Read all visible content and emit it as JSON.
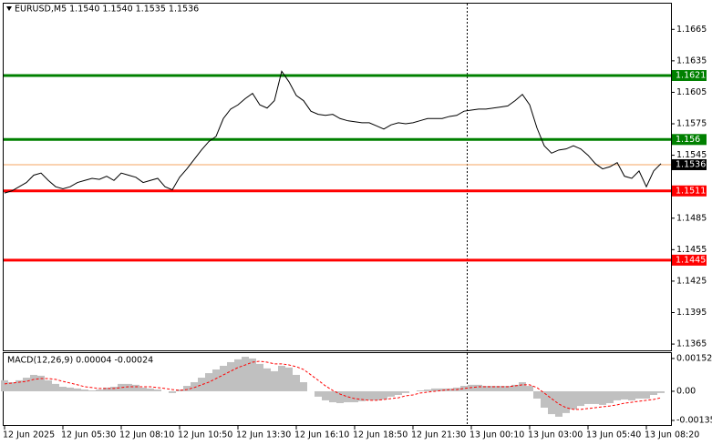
{
  "chart_data": [
    {
      "type": "line",
      "title": "EURUSD,M5  1.1540 1.1540 1.1535 1.1536",
      "categories": [
        "12 Jun 2025",
        null,
        null,
        null,
        null,
        null,
        null,
        null,
        "12 Jun 05:30",
        null,
        null,
        null,
        null,
        null,
        null,
        null,
        "12 Jun 08:10",
        null,
        null,
        null,
        null,
        null,
        null,
        null,
        "12 Jun 10:50",
        null,
        null,
        null,
        null,
        null,
        null,
        null,
        "12 Jun 13:30",
        null,
        null,
        null,
        null,
        null,
        null,
        null,
        "12 Jun 16:10",
        null,
        null,
        null,
        null,
        null,
        null,
        null,
        "12 Jun 18:50",
        null,
        null,
        null,
        null,
        null,
        null,
        null,
        "12 Jun 21:30",
        null,
        null,
        null,
        null,
        null,
        null,
        null,
        "13 Jun 00:10",
        null,
        null,
        null,
        null,
        null,
        null,
        null,
        "13 Jun 03:00",
        null,
        null,
        null,
        null,
        null,
        null,
        null,
        "13 Jun 05:40",
        null,
        null,
        null,
        null,
        null,
        null,
        null,
        "13 Jun 08:20",
        null,
        null
      ],
      "series": [
        {
          "name": "EURUSD",
          "color": "#000000",
          "values": [
            1.1509,
            1.1511,
            1.1515,
            1.1519,
            1.1526,
            1.1528,
            1.1521,
            1.1515,
            1.1513,
            1.1515,
            1.1519,
            1.1521,
            1.1523,
            1.1522,
            1.1525,
            1.1521,
            1.1528,
            1.1526,
            1.1524,
            1.1519,
            1.1521,
            1.1523,
            1.1515,
            1.1512,
            1.1524,
            1.1532,
            1.1541,
            1.155,
            1.1558,
            1.1563,
            1.158,
            1.1589,
            1.1593,
            1.1599,
            1.1604,
            1.1593,
            1.159,
            1.1597,
            1.1625,
            1.1615,
            1.1602,
            1.1597,
            1.1587,
            1.1584,
            1.1583,
            1.1584,
            1.158,
            1.1578,
            1.1577,
            1.1576,
            1.1576,
            1.1573,
            1.157,
            1.1574,
            1.1576,
            1.1575,
            1.1576,
            1.1578,
            1.158,
            1.158,
            1.158,
            1.1582,
            1.1583,
            1.1587,
            1.1588,
            1.1589,
            1.1589,
            1.159,
            1.1591,
            1.1592,
            1.1597,
            1.1603,
            1.1593,
            1.1571,
            1.1554,
            1.1547,
            1.155,
            1.1551,
            1.1554,
            1.1551,
            1.1545,
            1.1537,
            1.1532,
            1.1534,
            1.1538,
            1.1525,
            1.1523,
            1.153,
            1.1515,
            1.153,
            1.1537
          ]
        }
      ],
      "levels": [
        {
          "value": 1.1621,
          "color": "#008000"
        },
        {
          "value": 1.156,
          "color": "#008000"
        },
        {
          "value": 1.1511,
          "color": "#ff0000"
        },
        {
          "value": 1.1445,
          "color": "#ff0000"
        }
      ],
      "last": {
        "value": 1.1536,
        "color": "#f4a460"
      },
      "ylim": [
        1.1359,
        1.1693
      ],
      "yticks": [
        1.1665,
        1.1635,
        1.1605,
        1.1575,
        1.1545,
        1.1485,
        1.1455,
        1.1425,
        1.1395,
        1.1365
      ]
    },
    {
      "type": "bar",
      "title": "MACD(12,26,9) 0.00004 -0.00024",
      "series": [
        {
          "name": "MACD",
          "color": "#c0c0c0",
          "values": [
            0.00051,
            0.00042,
            0.00051,
            0.00063,
            0.00076,
            0.00072,
            0.00051,
            0.00034,
            0.00021,
            0.00017,
            0.00013,
            8e-05,
            4e-05,
            8e-05,
            0.00017,
            0.00021,
            0.00034,
            0.00034,
            0.0003,
            0.00017,
            0.00013,
            8e-05,
            0,
            -8e-05,
            8e-05,
            0.00025,
            0.00042,
            0.00063,
            0.00084,
            0.00101,
            0.00118,
            0.00135,
            0.00148,
            0.0016,
            0.00152,
            0.00127,
            0.00106,
            0.00093,
            0.00118,
            0.0011,
            0.00076,
            0.00042,
            0,
            -0.00025,
            -0.00042,
            -0.00051,
            -0.00055,
            -0.00051,
            -0.00051,
            -0.00046,
            -0.00042,
            -0.00042,
            -0.00038,
            -0.00025,
            -0.00017,
            -8e-05,
            0,
            4e-05,
            8e-05,
            0.00013,
            0.00013,
            0.00013,
            0.00017,
            0.00025,
            0.0003,
            0.0003,
            0.00025,
            0.00025,
            0.00025,
            0.00025,
            0.0003,
            0.00042,
            0.00025,
            -0.00034,
            -0.00076,
            -0.00106,
            -0.00118,
            -0.00101,
            -0.00084,
            -0.00068,
            -0.00059,
            -0.00059,
            -0.00063,
            -0.00055,
            -0.00042,
            -0.00038,
            -0.00042,
            -0.00034,
            -0.00034,
            -0.00017,
            -8e-05
          ]
        },
        {
          "name": "Signal",
          "color": "#ff0000",
          "values": [
            0.00034,
            0.00038,
            0.00042,
            0.00046,
            0.00055,
            0.00059,
            0.00059,
            0.00055,
            0.00046,
            0.00038,
            0.0003,
            0.00021,
            0.00017,
            0.00013,
            0.00013,
            0.00013,
            0.00017,
            0.00021,
            0.00021,
            0.00021,
            0.00021,
            0.00017,
            0.00013,
            8e-05,
            4e-05,
            8e-05,
            0.00017,
            0.0003,
            0.00042,
            0.00059,
            0.00076,
            0.00093,
            0.0011,
            0.00122,
            0.00135,
            0.00139,
            0.00135,
            0.00127,
            0.00127,
            0.00122,
            0.00114,
            0.00101,
            0.00076,
            0.00051,
            0.00025,
            4e-05,
            -0.00013,
            -0.00025,
            -0.00034,
            -0.00038,
            -0.00042,
            -0.00042,
            -0.00038,
            -0.00034,
            -0.0003,
            -0.00021,
            -0.00017,
            -8e-05,
            -4e-05,
            0,
            4e-05,
            8e-05,
            8e-05,
            0.00013,
            0.00017,
            0.00021,
            0.00021,
            0.00021,
            0.00021,
            0.00021,
            0.00025,
            0.0003,
            0.0003,
            0.00017,
            -8e-05,
            -0.00034,
            -0.00059,
            -0.00076,
            -0.00084,
            -0.00084,
            -0.0008,
            -0.00076,
            -0.00072,
            -0.00068,
            -0.00063,
            -0.00055,
            -0.00051,
            -0.00046,
            -0.00042,
            -0.00038,
            -0.0003
          ]
        }
      ],
      "ylim": [
        -0.00152,
        0.00177
      ],
      "yticks": [
        0.00152,
        {
          "value": 0,
          "label": "0.00"
        },
        -0.00135
      ]
    }
  ]
}
